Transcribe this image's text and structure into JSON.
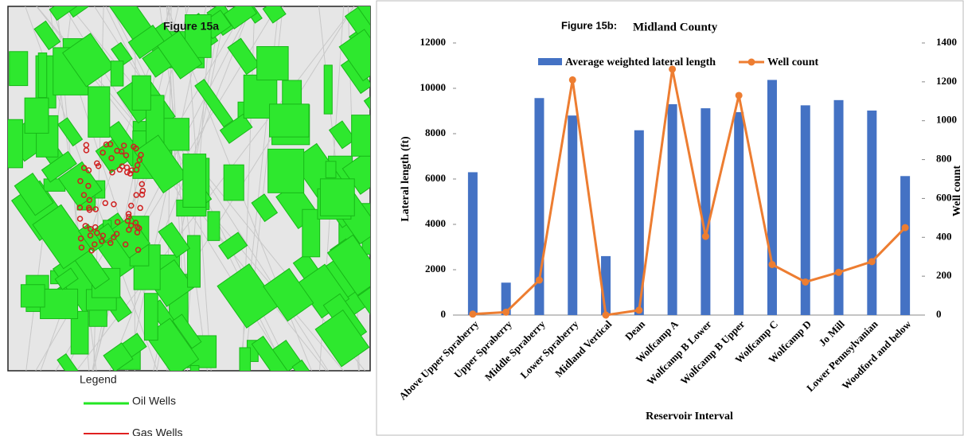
{
  "figure_15a": {
    "title": "Figure 15a",
    "legend_title": "Legend",
    "legend": [
      "Oil Wells",
      "Gas Wells"
    ]
  },
  "chart_data": {
    "type": "bar_line",
    "title": "Figure 15b:",
    "subtitle": "Midland County",
    "x_label": "Reservoir Interval",
    "y_label": "Lateral length (ft)",
    "y2_label": "Well count",
    "categories": [
      "Above Upper Spraberry",
      "Upper Spraberry",
      "Middle Spraberry",
      "Lower Spraberry",
      "Midland Vertical",
      "Dean",
      "Wolfcamp A",
      "Wolfcamp B Lower",
      "Wolfcamp B Upper",
      "Wolfcamp C",
      "Wolfcamp D",
      "Jo Mill",
      "Lower Pennsylvanian",
      "Woodford and below"
    ],
    "series": [
      {
        "name": "Average weighted lateral  length",
        "color": "#4472c4",
        "type": "bar",
        "values": [
          6300,
          1430,
          9570,
          8800,
          2600,
          8150,
          9300,
          9120,
          8950,
          10370,
          9250,
          9480,
          9020,
          6130
        ]
      },
      {
        "name": "Well count",
        "color": "#ed7d31",
        "type": "line",
        "axis": "y2",
        "values": [
          5,
          15,
          180,
          1210,
          0,
          25,
          1265,
          405,
          1130,
          260,
          170,
          220,
          275,
          450
        ]
      }
    ],
    "ylim": [
      0,
      12000
    ],
    "yticks": [
      0,
      2000,
      4000,
      6000,
      8000,
      10000,
      12000
    ],
    "y2lim": [
      0,
      1400
    ],
    "y2ticks": [
      0,
      200,
      400,
      600,
      800,
      1000,
      1200,
      1400
    ]
  }
}
